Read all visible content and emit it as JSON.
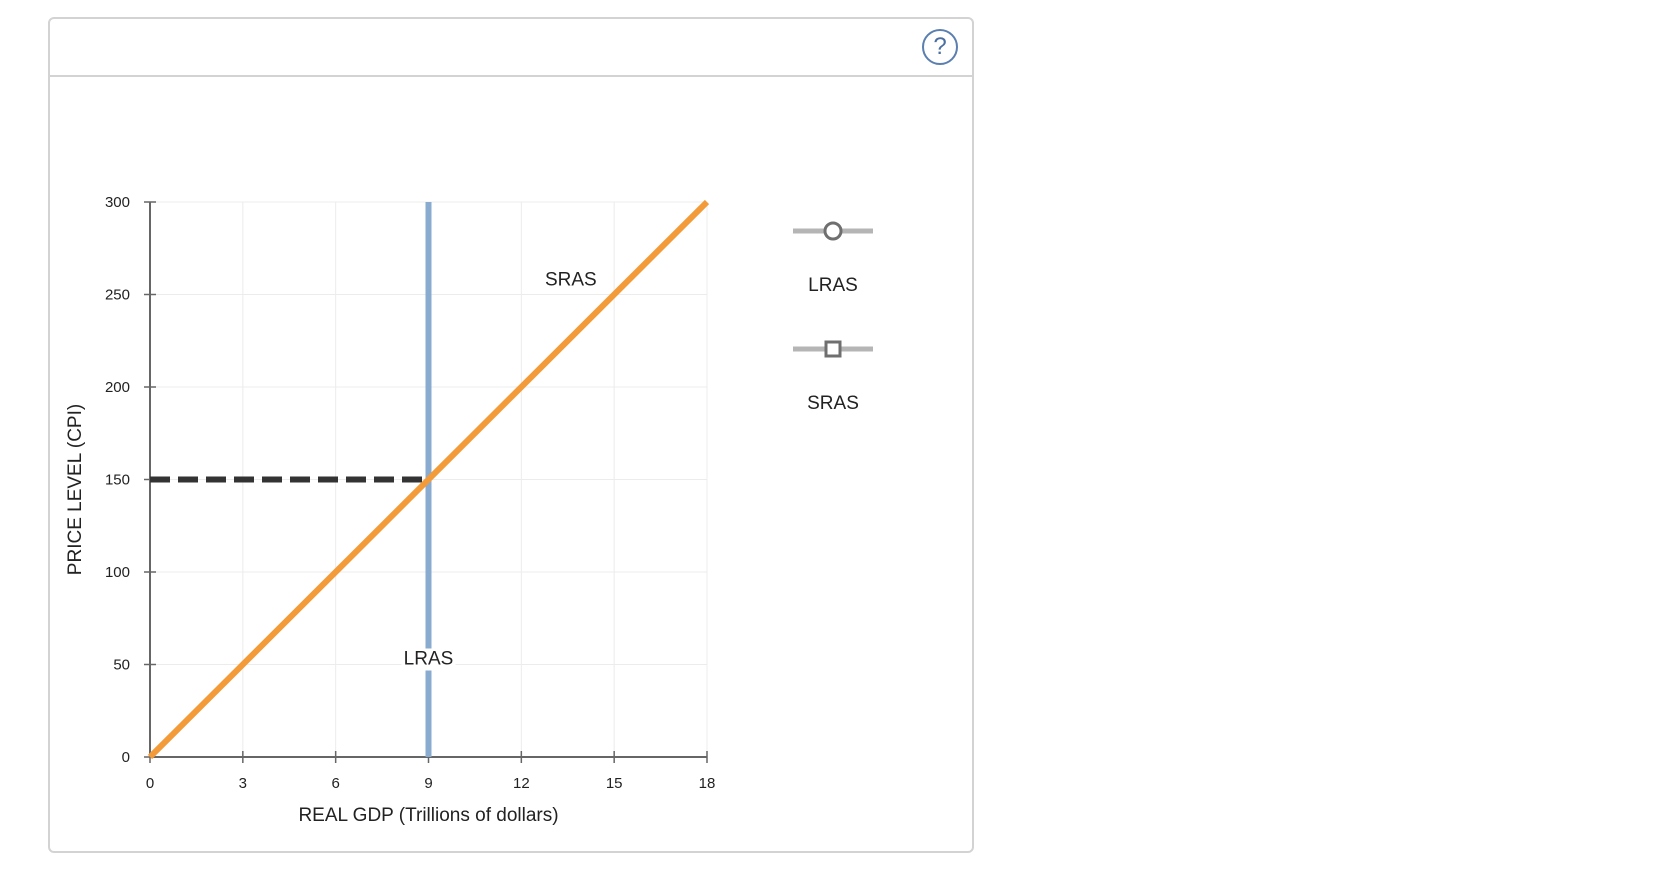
{
  "help": {
    "label": "?"
  },
  "chart_data": {
    "type": "line",
    "xlabel": "REAL GDP (Trillions of dollars)",
    "ylabel": "PRICE LEVEL (CPI)",
    "xlim": [
      0,
      18
    ],
    "ylim": [
      0,
      300
    ],
    "x_ticks": [
      0,
      3,
      6,
      9,
      12,
      15,
      18
    ],
    "y_ticks": [
      0,
      50,
      100,
      150,
      200,
      250,
      300
    ],
    "grid": true,
    "series": [
      {
        "name": "LRAS",
        "color": "#8aabd0",
        "x": [
          9,
          9
        ],
        "y": [
          0,
          300
        ],
        "label_at": [
          9,
          50
        ]
      },
      {
        "name": "SRAS",
        "color": "#f29b38",
        "x": [
          0,
          18
        ],
        "y": [
          0,
          300
        ],
        "label_at": [
          13.6,
          255
        ]
      }
    ],
    "reference_lines": [
      {
        "style": "dashed",
        "color": "#333333",
        "x": [
          0,
          9
        ],
        "y": [
          150,
          150
        ]
      }
    ],
    "legend": {
      "placement": "right",
      "items": [
        {
          "label": "LRAS",
          "marker": "circle"
        },
        {
          "label": "SRAS",
          "marker": "square"
        }
      ]
    }
  }
}
